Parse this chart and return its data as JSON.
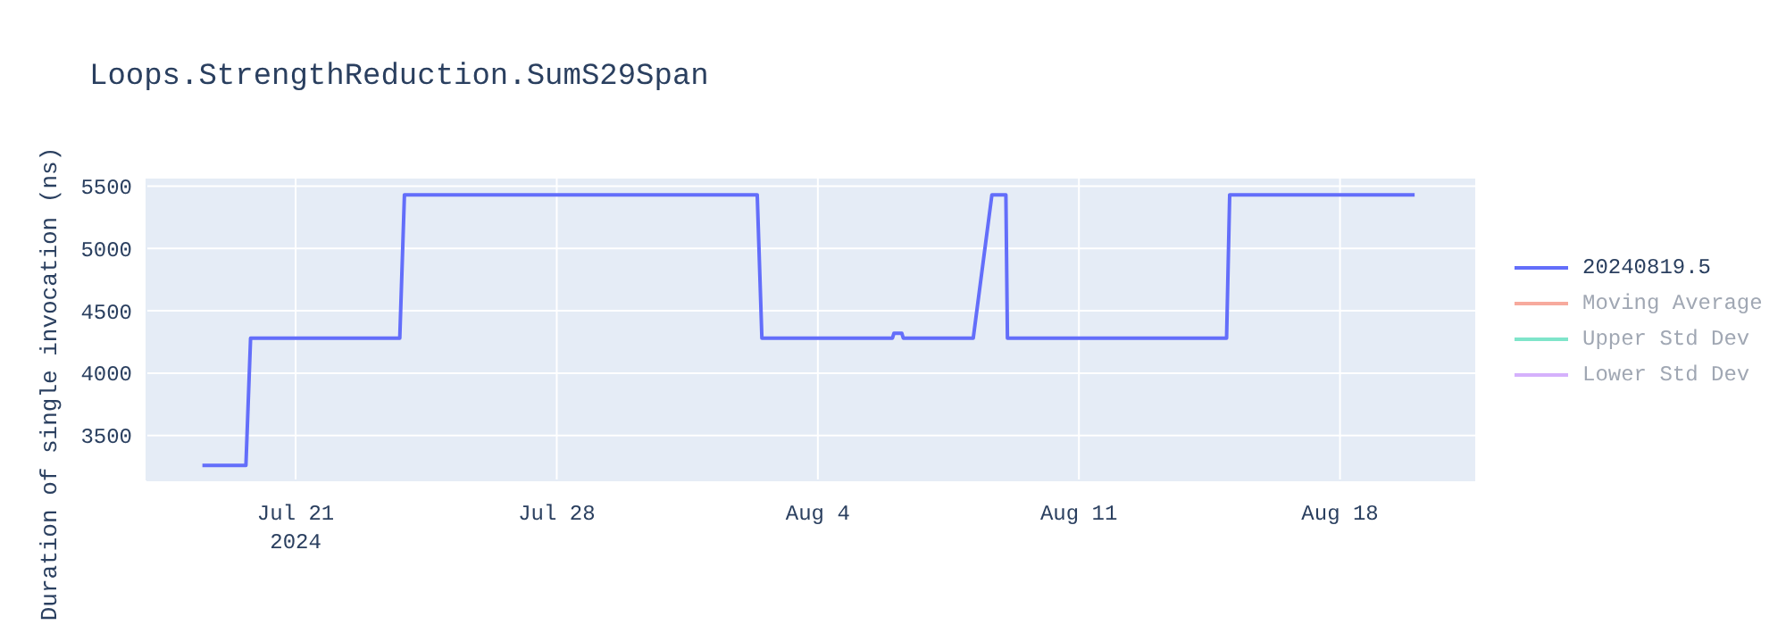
{
  "chart_data": {
    "type": "line",
    "title": "Loops.StrengthReduction.SumS29Span",
    "ylabel": "Duration of single invocation (ns)",
    "x": [
      "2024-07-18T12:00",
      "2024-07-19T16:00",
      "2024-07-19T19:00",
      "2024-07-21T20:00",
      "2024-07-23T19:00",
      "2024-07-23T22:00",
      "2024-07-26T00:00",
      "2024-07-28T00:00",
      "2024-07-30T12:00",
      "2024-08-02T09:00",
      "2024-08-02T12:00",
      "2024-08-04T12:00",
      "2024-08-06T00:00",
      "2024-08-06T01:00",
      "2024-08-06T06:00",
      "2024-08-06T07:00",
      "2024-08-08T04:00",
      "2024-08-08T16:00",
      "2024-08-09T01:00",
      "2024-08-09T02:00",
      "2024-08-12T00:00",
      "2024-08-14T23:00",
      "2024-08-15T01:00",
      "2024-08-18T00:00",
      "2024-08-20T00:00"
    ],
    "series": [
      {
        "name": "20240819.5",
        "color": "#636efa",
        "values": [
          3260,
          3260,
          4280,
          4280,
          4280,
          5430,
          5430,
          5430,
          5430,
          5430,
          4280,
          4280,
          4280,
          4320,
          4320,
          4280,
          4280,
          5430,
          5430,
          4280,
          4280,
          4280,
          5430,
          5430,
          5430
        ]
      },
      {
        "name": "Moving Average",
        "color": "#f7aa9d",
        "values": [
          null,
          null,
          null,
          null,
          null,
          null,
          null,
          null,
          null,
          null,
          null,
          null,
          null,
          null,
          null,
          null,
          null,
          null,
          null,
          null,
          null,
          null,
          null,
          null,
          null
        ]
      },
      {
        "name": "Upper Std Dev",
        "color": "#7fe5ca",
        "values": [
          null,
          null,
          null,
          null,
          null,
          null,
          null,
          null,
          null,
          null,
          null,
          null,
          null,
          null,
          null,
          null,
          null,
          null,
          null,
          null,
          null,
          null,
          null,
          null,
          null
        ]
      },
      {
        "name": "Lower Std Dev",
        "color": "#d5b1fc",
        "values": [
          null,
          null,
          null,
          null,
          null,
          null,
          null,
          null,
          null,
          null,
          null,
          null,
          null,
          null,
          null,
          null,
          null,
          null,
          null,
          null,
          null,
          null,
          null,
          null,
          null
        ]
      }
    ],
    "xlim": [
      "2024-07-17T00:00",
      "2024-08-21T15:00"
    ],
    "xticks": [
      {
        "value": "2024-07-21",
        "label": "Jul 21\n2024"
      },
      {
        "value": "2024-07-28",
        "label": "Jul 28"
      },
      {
        "value": "2024-08-04",
        "label": "Aug 4"
      },
      {
        "value": "2024-08-11",
        "label": "Aug 11"
      },
      {
        "value": "2024-08-18",
        "label": "Aug 18"
      }
    ],
    "ylim": [
      3140,
      5560
    ],
    "yticks": [
      3500,
      4000,
      4500,
      5000,
      5500
    ],
    "grid": true,
    "legend": "top right",
    "marker": "none",
    "line_style": "solid"
  }
}
